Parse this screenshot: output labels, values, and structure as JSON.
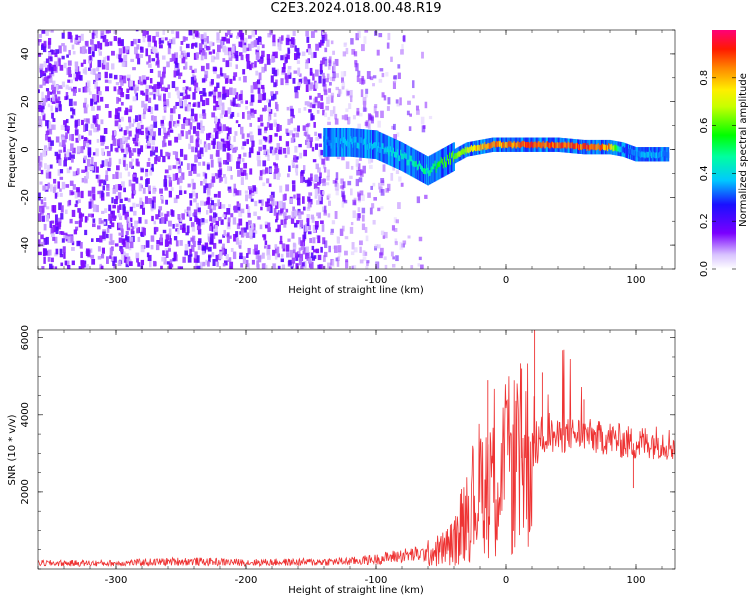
{
  "title": "C2E3.2024.018.00.48.R19",
  "chart_data": [
    {
      "type": "heatmap",
      "name": "spectrogram",
      "xlabel": "Height of straight line (km)",
      "ylabel": "Frequency (Hz)",
      "xlim": [
        -360,
        130
      ],
      "ylim": [
        -50,
        50
      ],
      "xticks": [
        -300,
        -200,
        -100,
        0,
        100
      ],
      "yticks": [
        -40,
        -20,
        0,
        20,
        40
      ],
      "colorbar": {
        "label": "Normalized spectral amplitude",
        "range": [
          0,
          1
        ],
        "ticks": [
          "0.0",
          "0.2",
          "0.4",
          "0.6",
          "0.8"
        ],
        "tick_values": [
          0.0,
          0.2,
          0.4,
          0.6,
          0.8
        ]
      },
      "noise_region_x": [
        -360,
        -55
      ],
      "signal_trace": {
        "x": [
          -140,
          -120,
          -100,
          -80,
          -70,
          -60,
          -50,
          -40,
          -30,
          -20,
          -10,
          0,
          20,
          40,
          60,
          80,
          90,
          100,
          110,
          125
        ],
        "frequency": [
          3,
          3,
          2,
          -3,
          -6,
          -9,
          -6,
          -3,
          0,
          1,
          2,
          2,
          2,
          2,
          1,
          1,
          0,
          -2,
          -2,
          -2
        ],
        "amplitude": [
          0.35,
          0.4,
          0.4,
          0.45,
          0.5,
          0.5,
          0.6,
          0.65,
          0.75,
          0.85,
          0.9,
          0.9,
          0.95,
          0.95,
          0.95,
          0.9,
          0.3,
          0.35,
          0.4,
          0.35
        ]
      }
    },
    {
      "type": "line",
      "name": "snr",
      "xlabel": "Height of straight line (km)",
      "ylabel": "SNR (10 * v/v)",
      "xlim": [
        -360,
        130
      ],
      "ylim": [
        0,
        6200
      ],
      "xticks": [
        -300,
        -200,
        -100,
        0,
        100
      ],
      "yticks": [
        2000,
        4000,
        6000
      ],
      "color": "#ee3333",
      "series": [
        {
          "x": [
            -360,
            -300,
            -250,
            -200,
            -150,
            -120,
            -100,
            -80,
            -60,
            -50,
            -40,
            -30,
            -20,
            -10,
            0,
            10,
            20,
            30,
            40,
            50,
            60,
            70,
            80,
            90,
            100,
            110,
            120,
            130
          ],
          "values": [
            150,
            150,
            200,
            170,
            180,
            200,
            250,
            350,
            400,
            500,
            700,
            1500,
            2100,
            2600,
            2600,
            2800,
            3200,
            3500,
            3400,
            3500,
            3500,
            3400,
            3400,
            3300,
            3250,
            3300,
            3300,
            3200
          ],
          "spikes": [
            {
              "x": -14,
              "y": 4900
            },
            {
              "x": 12,
              "y": 5200
            },
            {
              "x": 22,
              "y": 6200
            },
            {
              "x": 28,
              "y": 5100
            },
            {
              "x": 60,
              "y": 4400
            },
            {
              "x": 98,
              "y": 2100
            }
          ]
        }
      ]
    }
  ]
}
